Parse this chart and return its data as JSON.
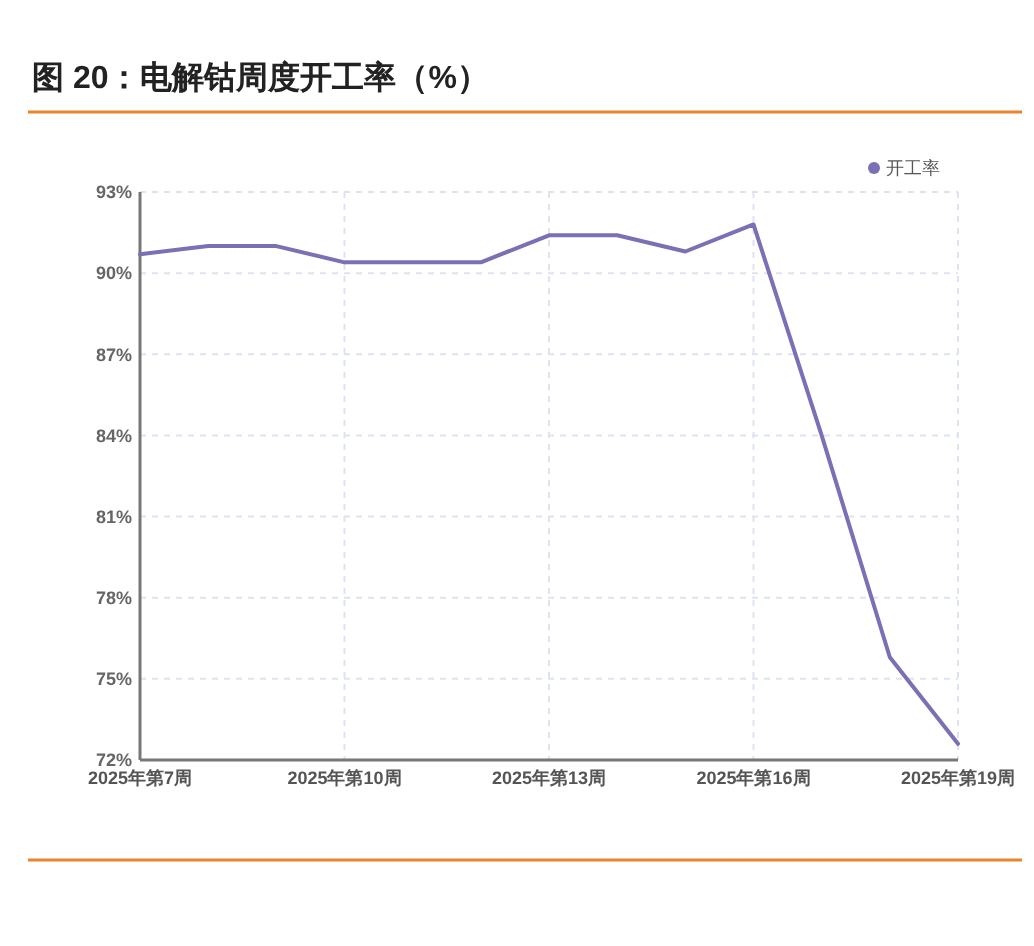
{
  "chart_data": {
    "type": "line",
    "title": "图 20：电解钴周度开工率（%）",
    "categories": [
      "2025年第7周",
      null,
      null,
      "2025年第10周",
      null,
      null,
      "2025年第13周",
      null,
      null,
      "2025年第16周",
      null,
      null,
      "2025年第19周"
    ],
    "series": [
      {
        "name": "开工率",
        "color": "#7b6fb5",
        "values": [
          90.7,
          91.0,
          91.0,
          90.4,
          90.4,
          90.4,
          91.4,
          91.4,
          90.8,
          91.8,
          84.0,
          75.8,
          72.6
        ]
      }
    ],
    "ylim": [
      72,
      93
    ],
    "yticks": [
      {
        "value": 72,
        "label": "72%"
      },
      {
        "value": 75,
        "label": "75%"
      },
      {
        "value": 78,
        "label": "78%"
      },
      {
        "value": 81,
        "label": "81%"
      },
      {
        "value": 84,
        "label": "84%"
      },
      {
        "value": 87,
        "label": "87%"
      },
      {
        "value": 90,
        "label": "90%"
      },
      {
        "value": 93,
        "label": "93%"
      }
    ],
    "grid": true,
    "legend": "top right",
    "marker": "none",
    "line_style": "solid"
  }
}
